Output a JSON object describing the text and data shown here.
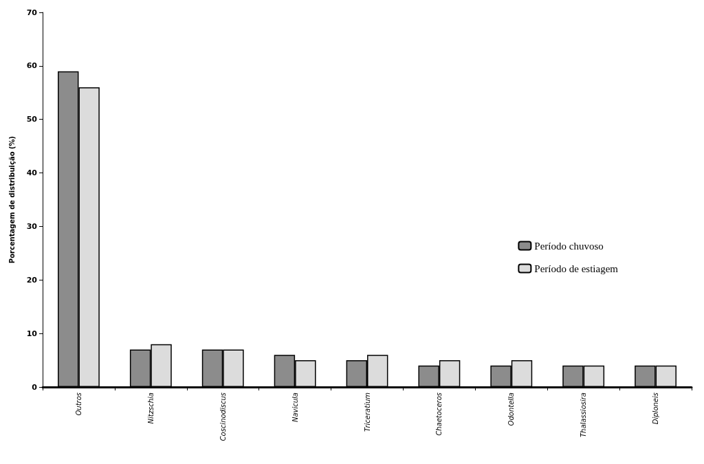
{
  "chart_data": {
    "type": "bar",
    "ylabel": "Porcentagem de distribuição (%)",
    "categories": [
      "Outros",
      "Nitzschia",
      "Coscinodiscus",
      "Navicula",
      "Triceratium",
      "Chaetoceros",
      "Odontella",
      "Thalassiosira",
      "Diploneis"
    ],
    "series": [
      {
        "name": "Período chuvoso",
        "color": "#8c8c8c",
        "values": [
          59,
          7,
          7,
          6,
          5,
          4,
          4,
          4,
          4
        ]
      },
      {
        "name": "Período de estiagem",
        "color": "#dcdcdc",
        "values": [
          56,
          8,
          7,
          5,
          6,
          5,
          5,
          4,
          4
        ]
      }
    ],
    "ylim": [
      0,
      70
    ],
    "yticks": [
      0,
      10,
      20,
      30,
      40,
      50,
      60,
      70
    ],
    "grid": false,
    "legend": "right"
  }
}
